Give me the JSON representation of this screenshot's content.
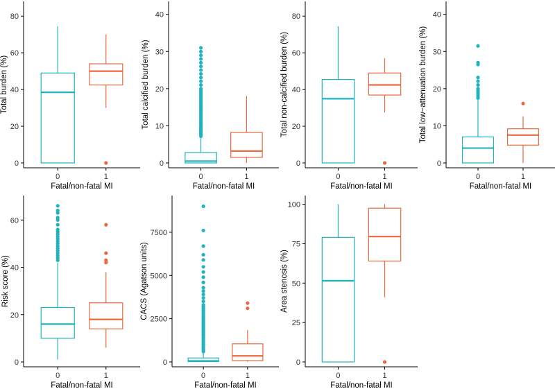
{
  "colors": {
    "group0": "#1fb3bf",
    "group1": "#e8683f"
  },
  "chart_data": [
    {
      "type": "boxplot",
      "id": "total-burden",
      "ylabel": "Total burden (%)",
      "xlabel": "Fatal/non-fatal MI",
      "categories": [
        "0",
        "1"
      ],
      "ylim": [
        0,
        85
      ],
      "yticks": [
        0,
        20,
        40,
        60,
        80
      ],
      "boxes": [
        {
          "group": "0",
          "min": 0,
          "q1": 0,
          "median": 38.5,
          "q3": 49,
          "max": 74.5,
          "outliers": []
        },
        {
          "group": "1",
          "min": 30,
          "q1": 42.5,
          "median": 50,
          "q3": 54,
          "max": 70,
          "outliers": [
            0
          ]
        }
      ]
    },
    {
      "type": "boxplot",
      "id": "total-calcified-burden",
      "ylabel": "Total calcified burden (%)",
      "xlabel": "Fatal/non-fatal MI",
      "categories": [
        "0",
        "1"
      ],
      "ylim": [
        0,
        42
      ],
      "yticks": [
        0,
        10,
        20,
        30,
        40
      ],
      "boxes": [
        {
          "group": "0",
          "min": 0,
          "q1": 0,
          "median": 0.5,
          "q3": 2.8,
          "max": 7,
          "outliers": [
            7.2,
            7.6,
            8,
            8.4,
            8.8,
            9.2,
            9.6,
            10,
            10.5,
            11,
            11.5,
            12,
            12.5,
            13,
            13.5,
            14,
            14.5,
            15,
            15.5,
            16,
            16.5,
            17,
            17.5,
            18,
            18.5,
            19,
            19.5,
            20,
            21,
            22,
            23,
            24,
            25,
            26,
            27,
            28,
            29,
            30,
            31
          ]
        },
        {
          "group": "1",
          "min": 0,
          "q1": 1.5,
          "median": 3.2,
          "q3": 8.2,
          "max": 18,
          "outliers": []
        }
      ]
    },
    {
      "type": "boxplot",
      "id": "total-noncalcified-burden",
      "ylabel": "Total non-calcified burden (%)",
      "xlabel": "Fatal/non-fatal MI",
      "categories": [
        "0",
        "1"
      ],
      "ylim": [
        0,
        85
      ],
      "yticks": [
        0,
        20,
        40,
        60,
        80
      ],
      "boxes": [
        {
          "group": "0",
          "min": 0,
          "q1": 0,
          "median": 35,
          "q3": 45.5,
          "max": 74.5,
          "outliers": []
        },
        {
          "group": "1",
          "min": 27.5,
          "q1": 37,
          "median": 42.5,
          "q3": 49,
          "max": 57,
          "outliers": [
            0
          ]
        }
      ]
    },
    {
      "type": "boxplot",
      "id": "total-low-attenuation-burden",
      "ylabel": "Total low−attenuation burden (%)",
      "xlabel": "Fatal/non-fatal MI",
      "categories": [
        "0",
        "1"
      ],
      "ylim": [
        0,
        42
      ],
      "yticks": [
        0,
        10,
        20,
        30,
        40
      ],
      "boxes": [
        {
          "group": "0",
          "min": 0,
          "q1": 0,
          "median": 4,
          "q3": 7,
          "max": 17,
          "outliers": [
            17.5,
            18,
            18.5,
            19,
            19.5,
            20,
            21,
            22,
            23,
            26.5,
            27,
            31.5
          ]
        },
        {
          "group": "1",
          "min": 0,
          "q1": 4.8,
          "median": 7.5,
          "q3": 9.2,
          "max": 12.5,
          "outliers": [
            16
          ]
        }
      ]
    },
    {
      "type": "boxplot",
      "id": "risk-score",
      "ylabel": "Risk score (%)",
      "xlabel": "Fatal/non-fatal MI",
      "categories": [
        "0",
        "1"
      ],
      "ylim": [
        0,
        68
      ],
      "yticks": [
        0,
        20,
        40,
        60
      ],
      "boxes": [
        {
          "group": "0",
          "min": 1,
          "q1": 10,
          "median": 16,
          "q3": 23,
          "max": 42,
          "outliers": [
            43,
            44,
            45,
            46,
            47,
            48,
            49,
            50,
            51,
            52,
            53,
            54,
            55,
            56,
            58,
            60,
            61,
            63,
            64,
            66
          ]
        },
        {
          "group": "1",
          "min": 6,
          "q1": 14,
          "median": 18,
          "q3": 25,
          "max": 38,
          "outliers": [
            42,
            43,
            46,
            58
          ]
        }
      ]
    },
    {
      "type": "boxplot",
      "id": "cacs",
      "ylabel": "CACS (Agatson units)",
      "xlabel": "Fatal/non-fatal MI",
      "categories": [
        "0",
        "1"
      ],
      "ylim": [
        0,
        9300
      ],
      "yticks": [
        0,
        2500,
        5000,
        7500
      ],
      "tick_labels": [
        "0",
        "2500",
        "5000",
        "7500"
      ],
      "boxes": [
        {
          "group": "0",
          "min": 0,
          "q1": 20,
          "median": 60,
          "q3": 230,
          "max": 550,
          "outliers": [
            600,
            700,
            800,
            900,
            1000,
            1100,
            1200,
            1300,
            1400,
            1500,
            1600,
            1700,
            1800,
            1900,
            2000,
            2100,
            2200,
            2300,
            2400,
            2500,
            2600,
            2700,
            2800,
            2900,
            3000,
            3100,
            3200,
            3300,
            3500,
            3700,
            3900,
            4100,
            4300,
            4600,
            4900,
            5200,
            5500,
            5900,
            6200,
            6700,
            7600,
            9000
          ]
        },
        {
          "group": "1",
          "min": 0,
          "q1": 80,
          "median": 350,
          "q3": 1050,
          "max": 1850,
          "outliers": [
            3100,
            3400
          ]
        }
      ]
    },
    {
      "type": "boxplot",
      "id": "area-stenosis",
      "ylabel": "Area stenosis (%)",
      "xlabel": "Fatal/non-fatal MI",
      "categories": [
        "0",
        "1"
      ],
      "ylim": [
        0,
        102
      ],
      "yticks": [
        0,
        25,
        50,
        75,
        100
      ],
      "boxes": [
        {
          "group": "0",
          "min": 0,
          "q1": 0,
          "median": 51.5,
          "q3": 79,
          "max": 100,
          "outliers": []
        },
        {
          "group": "1",
          "min": 41,
          "q1": 64,
          "median": 79.5,
          "q3": 97.5,
          "max": 100,
          "outliers": [
            0
          ]
        }
      ]
    }
  ]
}
